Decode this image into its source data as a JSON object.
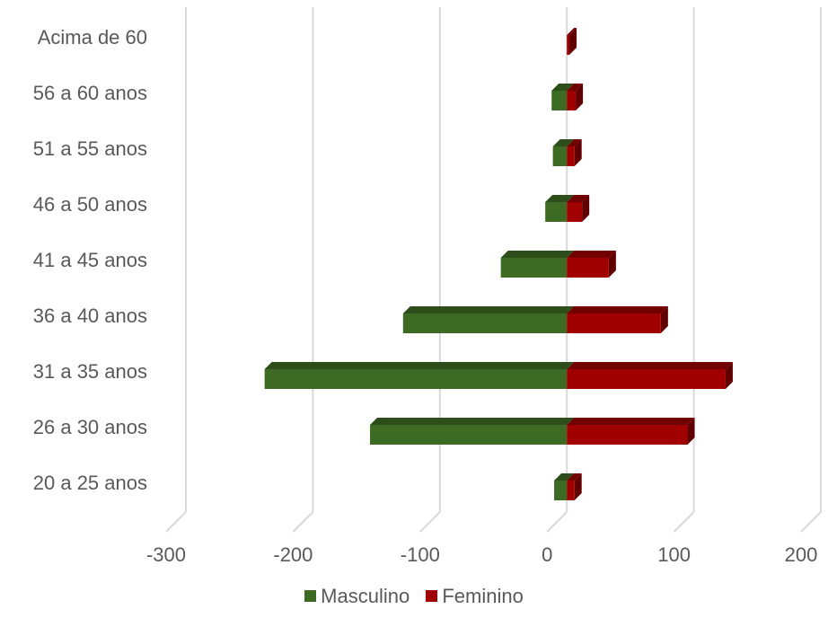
{
  "chart_data": {
    "type": "bar",
    "orientation": "horizontal",
    "stacked": true,
    "style": "3d",
    "categories": [
      "20 a 25 anos",
      "26 a 30 anos",
      "31 a 35 anos",
      "36 a 40 anos",
      "41 a 45 anos",
      "46 a 50 anos",
      "51 a 55 anos",
      "56 a 60 anos",
      "Acima de 60"
    ],
    "series": [
      {
        "name": "Masculino",
        "color": "#3e6b24",
        "values": [
          -10,
          -155,
          -238,
          -129,
          -52,
          -17,
          -11,
          -12,
          0
        ]
      },
      {
        "name": "Feminino",
        "color": "#a00000",
        "values": [
          6,
          95,
          125,
          74,
          33,
          12,
          6,
          7,
          2
        ]
      }
    ],
    "xlim": [
      -300,
      200
    ],
    "xticks": [
      "-300",
      "-200",
      "-100",
      "0",
      "100",
      "200"
    ],
    "grid": true,
    "legend_position": "bottom"
  }
}
